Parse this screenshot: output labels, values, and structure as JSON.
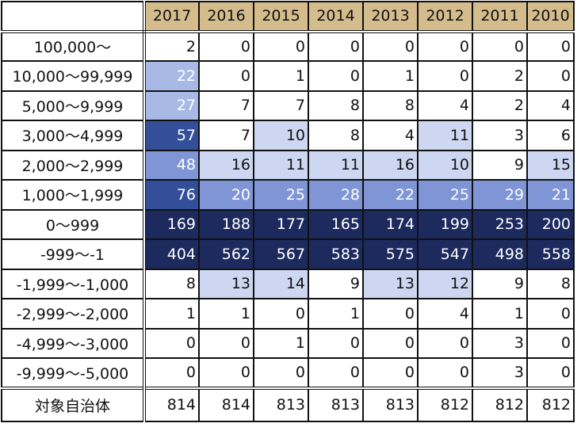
{
  "chart_data": {
    "type": "table",
    "title": "",
    "columns": [
      "2017",
      "2016",
      "2015",
      "2014",
      "2013",
      "2012",
      "2011",
      "2010"
    ],
    "rows": [
      {
        "label": "100,000～",
        "values": [
          2,
          0,
          0,
          0,
          0,
          0,
          0,
          0
        ]
      },
      {
        "label": "10,000～99,999",
        "values": [
          22,
          0,
          1,
          0,
          1,
          0,
          2,
          0
        ]
      },
      {
        "label": "5,000～9,999",
        "values": [
          27,
          7,
          7,
          8,
          8,
          4,
          2,
          4
        ]
      },
      {
        "label": "3,000～4,999",
        "values": [
          57,
          7,
          10,
          8,
          4,
          11,
          3,
          6
        ]
      },
      {
        "label": "2,000～2,999",
        "values": [
          48,
          16,
          11,
          11,
          16,
          10,
          9,
          15
        ]
      },
      {
        "label": "1,000～1,999",
        "values": [
          76,
          20,
          25,
          28,
          22,
          25,
          29,
          21
        ]
      },
      {
        "label": "0～999",
        "values": [
          169,
          188,
          177,
          165,
          174,
          199,
          253,
          200
        ]
      },
      {
        "label": "-999～-1",
        "values": [
          404,
          562,
          567,
          583,
          575,
          547,
          498,
          558
        ]
      },
      {
        "label": "-1,999～-1,000",
        "values": [
          8,
          13,
          14,
          9,
          13,
          12,
          9,
          8
        ]
      },
      {
        "label": "-2,999～-2,000",
        "values": [
          1,
          1,
          0,
          1,
          0,
          4,
          1,
          0
        ]
      },
      {
        "label": "-4,999～-3,000",
        "values": [
          0,
          0,
          1,
          0,
          0,
          0,
          3,
          0
        ]
      },
      {
        "label": "-9,999～-5,000",
        "values": [
          0,
          0,
          0,
          0,
          0,
          0,
          3,
          0
        ]
      }
    ],
    "total": {
      "label": "対象自治体",
      "values": [
        814,
        814,
        813,
        813,
        813,
        812,
        812,
        812
      ]
    }
  },
  "colors": {
    "header_bg": "#d4bc8d",
    "shade_light": "#cdd7f1",
    "shade_mid_light": "#a8b9e6",
    "shade_mid": "#7f95d6",
    "shade_strong": "#344f9a",
    "shade_dark": "#1c2a5e",
    "text_dark": "#111111",
    "text_light": "#ffffff"
  }
}
